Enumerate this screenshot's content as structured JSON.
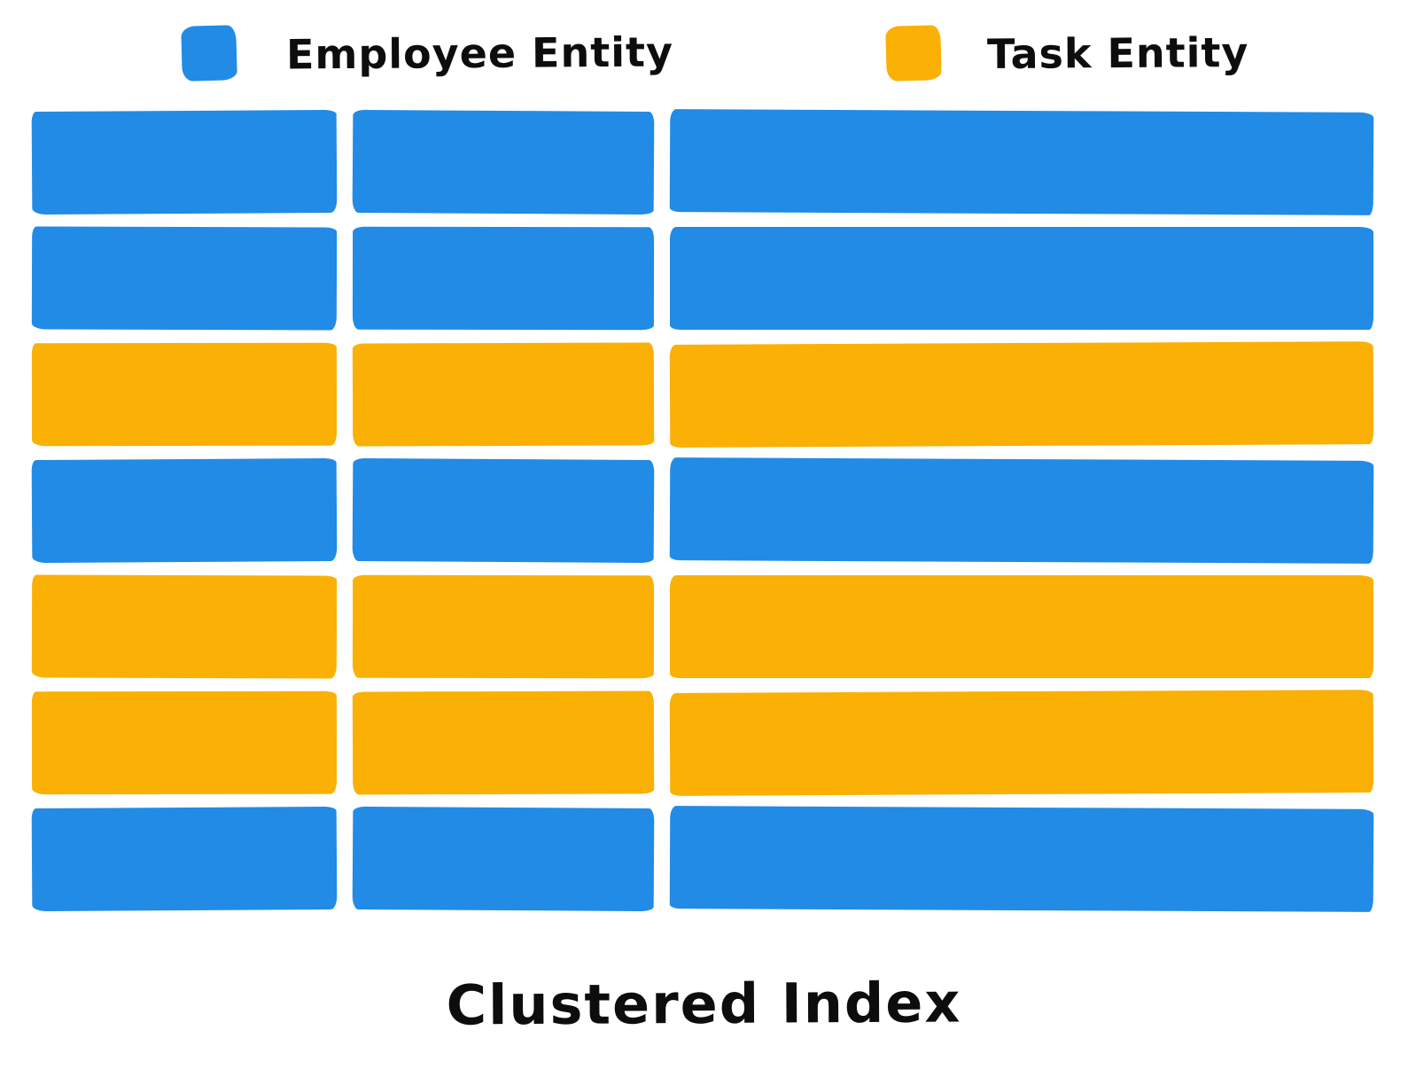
{
  "title": "Clustered Index",
  "legend": {
    "items": [
      {
        "id": "employee",
        "label": "Employee Entity",
        "color": "#228be6"
      },
      {
        "id": "task",
        "label": "Task Entity",
        "color": "#fab005"
      }
    ]
  },
  "grid": {
    "columns": 3,
    "rows": [
      {
        "cells": [
          "employee",
          "employee",
          "employee"
        ]
      },
      {
        "cells": [
          "employee",
          "employee",
          "employee"
        ]
      },
      {
        "cells": [
          "task",
          "task",
          "task"
        ]
      },
      {
        "cells": [
          "employee",
          "employee",
          "employee"
        ]
      },
      {
        "cells": [
          "task",
          "task",
          "task"
        ]
      },
      {
        "cells": [
          "task",
          "task",
          "task"
        ]
      },
      {
        "cells": [
          "employee",
          "employee",
          "employee"
        ]
      }
    ]
  }
}
